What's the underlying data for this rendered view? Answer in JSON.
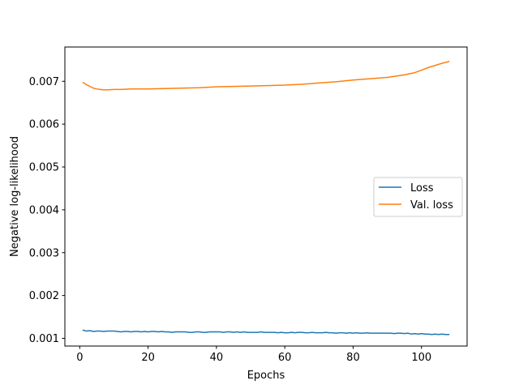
{
  "chart_data": {
    "type": "line",
    "xlabel": "Epochs",
    "ylabel": "Negative log-likelihood",
    "xlim": [
      -4.35,
      113.35
    ],
    "ylim": [
      0.00082,
      0.0078
    ],
    "xticks": [
      0,
      20,
      40,
      60,
      80,
      100
    ],
    "xtick_labels": [
      "0",
      "20",
      "40",
      "60",
      "80",
      "100"
    ],
    "yticks": [
      0.001,
      0.002,
      0.003,
      0.004,
      0.005,
      0.006,
      0.007
    ],
    "ytick_labels": [
      "0.001",
      "0.002",
      "0.003",
      "0.004",
      "0.005",
      "0.006",
      "0.007"
    ],
    "grid": false,
    "legend_position": "center-right",
    "series": [
      {
        "name": "Loss",
        "color": "#1f77b4",
        "x": [
          1,
          2,
          3,
          4,
          5,
          6,
          7,
          8,
          9,
          10,
          11,
          12,
          13,
          14,
          15,
          16,
          17,
          18,
          19,
          20,
          21,
          22,
          23,
          24,
          25,
          26,
          27,
          28,
          29,
          30,
          31,
          32,
          33,
          34,
          35,
          36,
          37,
          38,
          39,
          40,
          41,
          42,
          43,
          44,
          45,
          46,
          47,
          48,
          49,
          50,
          51,
          52,
          53,
          54,
          55,
          56,
          57,
          58,
          59,
          60,
          61,
          62,
          63,
          64,
          65,
          66,
          67,
          68,
          69,
          70,
          71,
          72,
          73,
          74,
          75,
          76,
          77,
          78,
          79,
          80,
          81,
          82,
          83,
          84,
          85,
          86,
          87,
          88,
          89,
          90,
          91,
          92,
          93,
          94,
          95,
          96,
          97,
          98,
          99,
          100,
          101,
          102,
          103,
          104,
          105,
          106,
          107,
          108
        ],
        "values": [
          0.00119,
          0.00117,
          0.00118,
          0.00116,
          0.00117,
          0.00117,
          0.00116,
          0.00117,
          0.00117,
          0.00117,
          0.00116,
          0.00115,
          0.00116,
          0.00116,
          0.00115,
          0.00116,
          0.00116,
          0.00115,
          0.00116,
          0.00115,
          0.00116,
          0.00116,
          0.00115,
          0.00116,
          0.00115,
          0.00115,
          0.00114,
          0.00115,
          0.00115,
          0.00115,
          0.00115,
          0.00114,
          0.00114,
          0.00115,
          0.00115,
          0.00114,
          0.00114,
          0.00115,
          0.00115,
          0.00115,
          0.00115,
          0.00114,
          0.00115,
          0.00115,
          0.00114,
          0.00115,
          0.00114,
          0.00115,
          0.00114,
          0.00114,
          0.00114,
          0.00114,
          0.00115,
          0.00114,
          0.00114,
          0.00114,
          0.00114,
          0.00113,
          0.00114,
          0.00113,
          0.00113,
          0.00114,
          0.00113,
          0.00114,
          0.00114,
          0.00113,
          0.00113,
          0.00114,
          0.00113,
          0.00113,
          0.00113,
          0.00114,
          0.00113,
          0.00113,
          0.00112,
          0.00113,
          0.00113,
          0.00112,
          0.00113,
          0.00112,
          0.00113,
          0.00112,
          0.00112,
          0.00113,
          0.00112,
          0.00112,
          0.00112,
          0.00112,
          0.00112,
          0.00112,
          0.00112,
          0.00111,
          0.00112,
          0.00112,
          0.00111,
          0.00112,
          0.0011,
          0.00111,
          0.0011,
          0.00111,
          0.0011,
          0.0011,
          0.00109,
          0.0011,
          0.00109,
          0.0011,
          0.00109,
          0.00109
        ]
      },
      {
        "name": "Val. loss",
        "color": "#ff7f0e",
        "x": [
          1,
          2,
          3,
          4,
          5,
          6,
          7,
          8,
          10,
          12,
          15,
          20,
          25,
          30,
          35,
          40,
          45,
          50,
          55,
          60,
          65,
          70,
          75,
          80,
          85,
          90,
          95,
          98,
          100,
          102,
          104,
          106,
          108
        ],
        "values": [
          0.00697,
          0.00692,
          0.00688,
          0.00684,
          0.00682,
          0.00681,
          0.0068,
          0.0068,
          0.00681,
          0.00681,
          0.00682,
          0.00682,
          0.00683,
          0.00684,
          0.00685,
          0.00687,
          0.00688,
          0.00689,
          0.0069,
          0.00691,
          0.00693,
          0.00696,
          0.00699,
          0.00703,
          0.00706,
          0.00709,
          0.00715,
          0.0072,
          0.00726,
          0.00732,
          0.00737,
          0.00742,
          0.00746
        ]
      }
    ]
  }
}
